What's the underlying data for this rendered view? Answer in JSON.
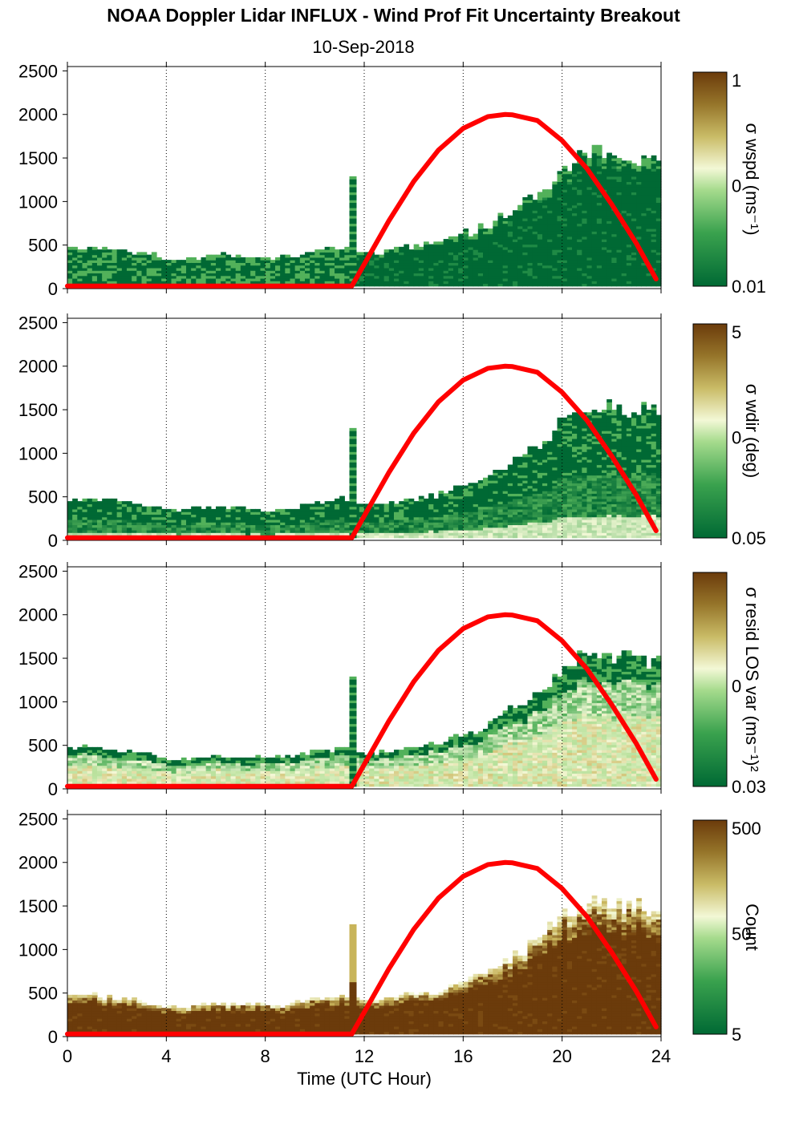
{
  "title": "NOAA Doppler Lidar INFLUX - Wind Prof Fit Uncertainty Breakout",
  "subtitle": "10-Sep-2018",
  "chart_data": {
    "type": "heatmap",
    "xlabel": "Time (UTC Hour)",
    "xlim": [
      0,
      24
    ],
    "xticks": [
      0,
      4,
      8,
      12,
      16,
      20,
      24
    ],
    "ylim": [
      0,
      2550
    ],
    "yticks": [
      0,
      500,
      1000,
      1500,
      2000,
      2500
    ],
    "grid": "vertical dotted at x ticks",
    "colors": {
      "dark_green": "#006934",
      "mid_green": "#52b15a",
      "pale": "#f3f8d6",
      "tan": "#c8b45a",
      "dark_brown": "#6b3b0b",
      "overlay_line": "#ff0000"
    },
    "overlay_curve": {
      "description_free": true,
      "x": [
        0,
        11.5,
        12,
        13,
        14,
        15,
        16,
        17,
        17.7,
        18,
        19,
        20,
        21,
        22,
        23,
        23.8
      ],
      "y": [
        30,
        30,
        280,
        780,
        1230,
        1590,
        1840,
        1975,
        2000,
        1995,
        1930,
        1700,
        1380,
        970,
        520,
        110
      ]
    },
    "echo_top": {
      "x": [
        0,
        1,
        2,
        3,
        4,
        5,
        6,
        7,
        8,
        9,
        10,
        11,
        12,
        13,
        14,
        15,
        16,
        17,
        18,
        19,
        20,
        21,
        22,
        23,
        23.8
      ],
      "y": [
        470,
        460,
        420,
        400,
        320,
        340,
        380,
        350,
        340,
        360,
        430,
        450,
        380,
        420,
        480,
        520,
        620,
        720,
        920,
        1100,
        1400,
        1550,
        1500,
        1480,
        1450
      ]
    },
    "panels": [
      {
        "colorbar_label": "σ wspd (ms⁻¹)",
        "colorbar_ticks": [
          "1",
          "0",
          "0.01"
        ],
        "log_scale": true,
        "pattern": "mostly_dark_green"
      },
      {
        "colorbar_label": "σ wdir (deg)",
        "colorbar_ticks": [
          "5",
          "0",
          "0.05"
        ],
        "log_scale": true,
        "pattern": "green_with_light_base"
      },
      {
        "colorbar_label": "σ resid LOS var (ms⁻¹)²",
        "colorbar_ticks": [
          "",
          "0",
          "0.03"
        ],
        "log_scale": true,
        "pattern": "pale_tan_lower_green_top"
      },
      {
        "colorbar_label": "Count",
        "colorbar_ticks": [
          "500",
          "50",
          "5"
        ],
        "log_scale": true,
        "pattern": "brown_core_pale_top"
      }
    ]
  }
}
